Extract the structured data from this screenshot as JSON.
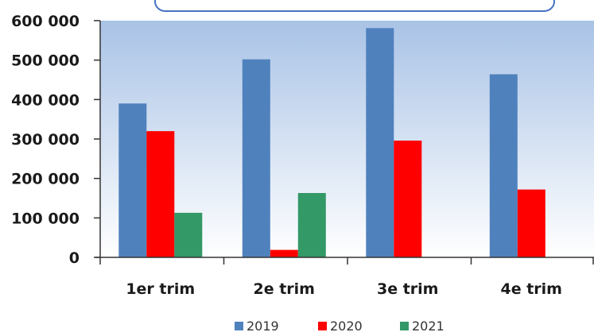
{
  "chart_data": {
    "type": "bar",
    "categories": [
      "1er trim",
      "2e trim",
      "3e trim",
      "4e trim"
    ],
    "series": [
      {
        "name": "2019",
        "color": "#4f81bd",
        "values": [
          390000,
          502000,
          581000,
          464000
        ]
      },
      {
        "name": "2020",
        "color": "#ff0000",
        "values": [
          320000,
          19000,
          296000,
          172000
        ]
      },
      {
        "name": "2021",
        "color": "#339966",
        "values": [
          113000,
          163000,
          null,
          null
        ]
      }
    ],
    "title": "",
    "xlabel": "",
    "ylabel": "",
    "ylim": [
      0,
      600000
    ],
    "yticks": [
      0,
      100000,
      200000,
      300000,
      400000,
      500000,
      600000
    ],
    "ytick_labels": [
      "0",
      "100 000",
      "200 000",
      "300 000",
      "400 000",
      "500 000",
      "600 000"
    ],
    "grid": false,
    "legend": "bottom",
    "background_gradient": [
      "#a9c3e6",
      "#ffffff"
    ]
  }
}
